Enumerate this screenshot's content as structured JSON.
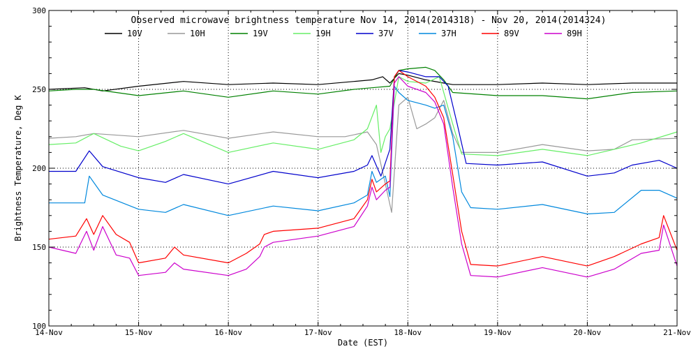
{
  "chart_data": {
    "type": "line",
    "title": "Observed microwave brightness temperature Nov 14, 2014(2014318) - Nov 20, 2014(2014324)",
    "xlabel": "Date (EST)",
    "ylabel": "Brightness Temperature, Deg K",
    "ylim": [
      100,
      300
    ],
    "xlim": [
      0,
      7
    ],
    "yticks": [
      100,
      150,
      200,
      250,
      300
    ],
    "x_ticks": [
      0,
      1,
      2,
      3,
      4,
      5,
      6,
      7
    ],
    "x_tick_labels": [
      "14-Nov",
      "15-Nov",
      "16-Nov",
      "17-Nov",
      "18-Nov",
      "19-Nov",
      "20-Nov",
      "21-Nov"
    ],
    "grid": "dotted",
    "series": [
      {
        "name": "10V",
        "color": "#000000",
        "x": [
          0,
          0.4,
          0.6,
          1.0,
          1.5,
          2.0,
          2.5,
          3.0,
          3.4,
          3.6,
          3.72,
          3.8,
          3.9,
          4.0,
          4.2,
          4.4,
          4.5,
          4.8,
          5.0,
          5.5,
          6.0,
          6.5,
          7.0
        ],
        "values": [
          250,
          251,
          249,
          252,
          255,
          253,
          254,
          253,
          255,
          256,
          258,
          254,
          260,
          259,
          256,
          254,
          253,
          253,
          253,
          254,
          253,
          254,
          254
        ]
      },
      {
        "name": "10H",
        "color": "#999999",
        "x": [
          0,
          0.3,
          0.5,
          1.0,
          1.5,
          2.0,
          2.5,
          3.0,
          3.3,
          3.55,
          3.65,
          3.75,
          3.82,
          3.9,
          4.0,
          4.1,
          4.2,
          4.3,
          4.4,
          4.5,
          4.6,
          5.0,
          5.5,
          6.0,
          6.3,
          6.5,
          7.0
        ],
        "values": [
          219,
          220,
          222,
          220,
          224,
          219,
          223,
          220,
          220,
          223,
          215,
          190,
          172,
          240,
          245,
          225,
          228,
          232,
          243,
          222,
          210,
          210,
          215,
          211,
          212,
          218,
          219
        ]
      },
      {
        "name": "19V",
        "color": "#008000",
        "x": [
          0,
          0.3,
          0.5,
          1.0,
          1.5,
          2.0,
          2.5,
          3.0,
          3.4,
          3.6,
          3.8,
          3.9,
          4.0,
          4.2,
          4.3,
          4.4,
          4.5,
          5.0,
          5.5,
          6.0,
          6.5,
          7.0
        ],
        "values": [
          249,
          250,
          250,
          246,
          249,
          245,
          249,
          247,
          250,
          251,
          252,
          262,
          263,
          264,
          262,
          256,
          248,
          246,
          246,
          244,
          248,
          249
        ]
      },
      {
        "name": "19H",
        "color": "#66ee66",
        "x": [
          0,
          0.3,
          0.5,
          0.8,
          1.0,
          1.3,
          1.5,
          2.0,
          2.5,
          3.0,
          3.4,
          3.55,
          3.65,
          3.7,
          3.75,
          3.8,
          3.9,
          4.0,
          4.2,
          4.35,
          4.5,
          4.6,
          5.0,
          5.5,
          6.0,
          6.3,
          6.6,
          7.0
        ],
        "values": [
          215,
          216,
          222,
          214,
          211,
          217,
          222,
          210,
          216,
          212,
          218,
          225,
          240,
          210,
          220,
          225,
          258,
          255,
          254,
          258,
          228,
          209,
          208,
          212,
          208,
          212,
          216,
          223
        ]
      },
      {
        "name": "37V",
        "color": "#0000cc",
        "x": [
          0,
          0.3,
          0.45,
          0.6,
          1.0,
          1.3,
          1.5,
          2.0,
          2.5,
          3.0,
          3.4,
          3.55,
          3.6,
          3.7,
          3.8,
          3.85,
          3.9,
          4.0,
          4.2,
          4.35,
          4.45,
          4.55,
          4.65,
          5.0,
          5.5,
          6.0,
          6.3,
          6.5,
          6.8,
          7.0
        ],
        "values": [
          198,
          198,
          211,
          201,
          194,
          191,
          196,
          190,
          198,
          194,
          198,
          202,
          208,
          195,
          212,
          258,
          262,
          261,
          258,
          258,
          252,
          228,
          203,
          202,
          204,
          195,
          197,
          202,
          205,
          200
        ]
      },
      {
        "name": "37H",
        "color": "#0088dd",
        "x": [
          0,
          0.4,
          0.45,
          0.6,
          1.0,
          1.3,
          1.5,
          2.0,
          2.5,
          3.0,
          3.4,
          3.55,
          3.6,
          3.65,
          3.75,
          3.8,
          3.85,
          3.9,
          4.0,
          4.2,
          4.3,
          4.4,
          4.5,
          4.6,
          4.7,
          5.0,
          5.5,
          6.0,
          6.3,
          6.6,
          6.8,
          7.0
        ],
        "values": [
          178,
          178,
          195,
          183,
          174,
          172,
          177,
          170,
          176,
          173,
          178,
          183,
          198,
          191,
          195,
          182,
          252,
          248,
          243,
          240,
          238,
          240,
          220,
          185,
          175,
          174,
          177,
          171,
          172,
          186,
          186,
          181
        ]
      },
      {
        "name": "89V",
        "color": "#ff0000",
        "x": [
          0,
          0.3,
          0.42,
          0.5,
          0.6,
          0.75,
          0.9,
          1.0,
          1.3,
          1.4,
          1.5,
          2.0,
          2.2,
          2.35,
          2.4,
          2.5,
          3.0,
          3.4,
          3.55,
          3.6,
          3.65,
          3.75,
          3.8,
          3.85,
          3.9,
          4.0,
          4.2,
          4.3,
          4.4,
          4.5,
          4.6,
          4.7,
          5.0,
          5.5,
          6.0,
          6.3,
          6.6,
          6.8,
          6.85,
          7.0
        ],
        "values": [
          155,
          157,
          168,
          158,
          170,
          158,
          153,
          140,
          143,
          150,
          145,
          140,
          146,
          152,
          158,
          160,
          162,
          168,
          180,
          193,
          185,
          190,
          192,
          258,
          262,
          258,
          252,
          245,
          232,
          196,
          160,
          139,
          138,
          144,
          138,
          144,
          152,
          156,
          170,
          148
        ]
      },
      {
        "name": "89H",
        "color": "#cc00cc",
        "x": [
          0,
          0.3,
          0.42,
          0.5,
          0.6,
          0.75,
          0.9,
          1.0,
          1.3,
          1.4,
          1.5,
          2.0,
          2.2,
          2.35,
          2.4,
          2.5,
          3.0,
          3.4,
          3.55,
          3.6,
          3.65,
          3.75,
          3.8,
          3.85,
          3.9,
          4.0,
          4.2,
          4.3,
          4.4,
          4.5,
          4.6,
          4.7,
          5.0,
          5.5,
          6.0,
          6.3,
          6.6,
          6.8,
          6.85,
          7.0
        ],
        "values": [
          150,
          146,
          160,
          148,
          163,
          145,
          143,
          132,
          134,
          140,
          136,
          132,
          136,
          144,
          150,
          153,
          157,
          163,
          176,
          188,
          180,
          186,
          188,
          254,
          258,
          252,
          248,
          242,
          228,
          188,
          152,
          132,
          131,
          137,
          131,
          136,
          146,
          148,
          164,
          138
        ]
      }
    ]
  }
}
